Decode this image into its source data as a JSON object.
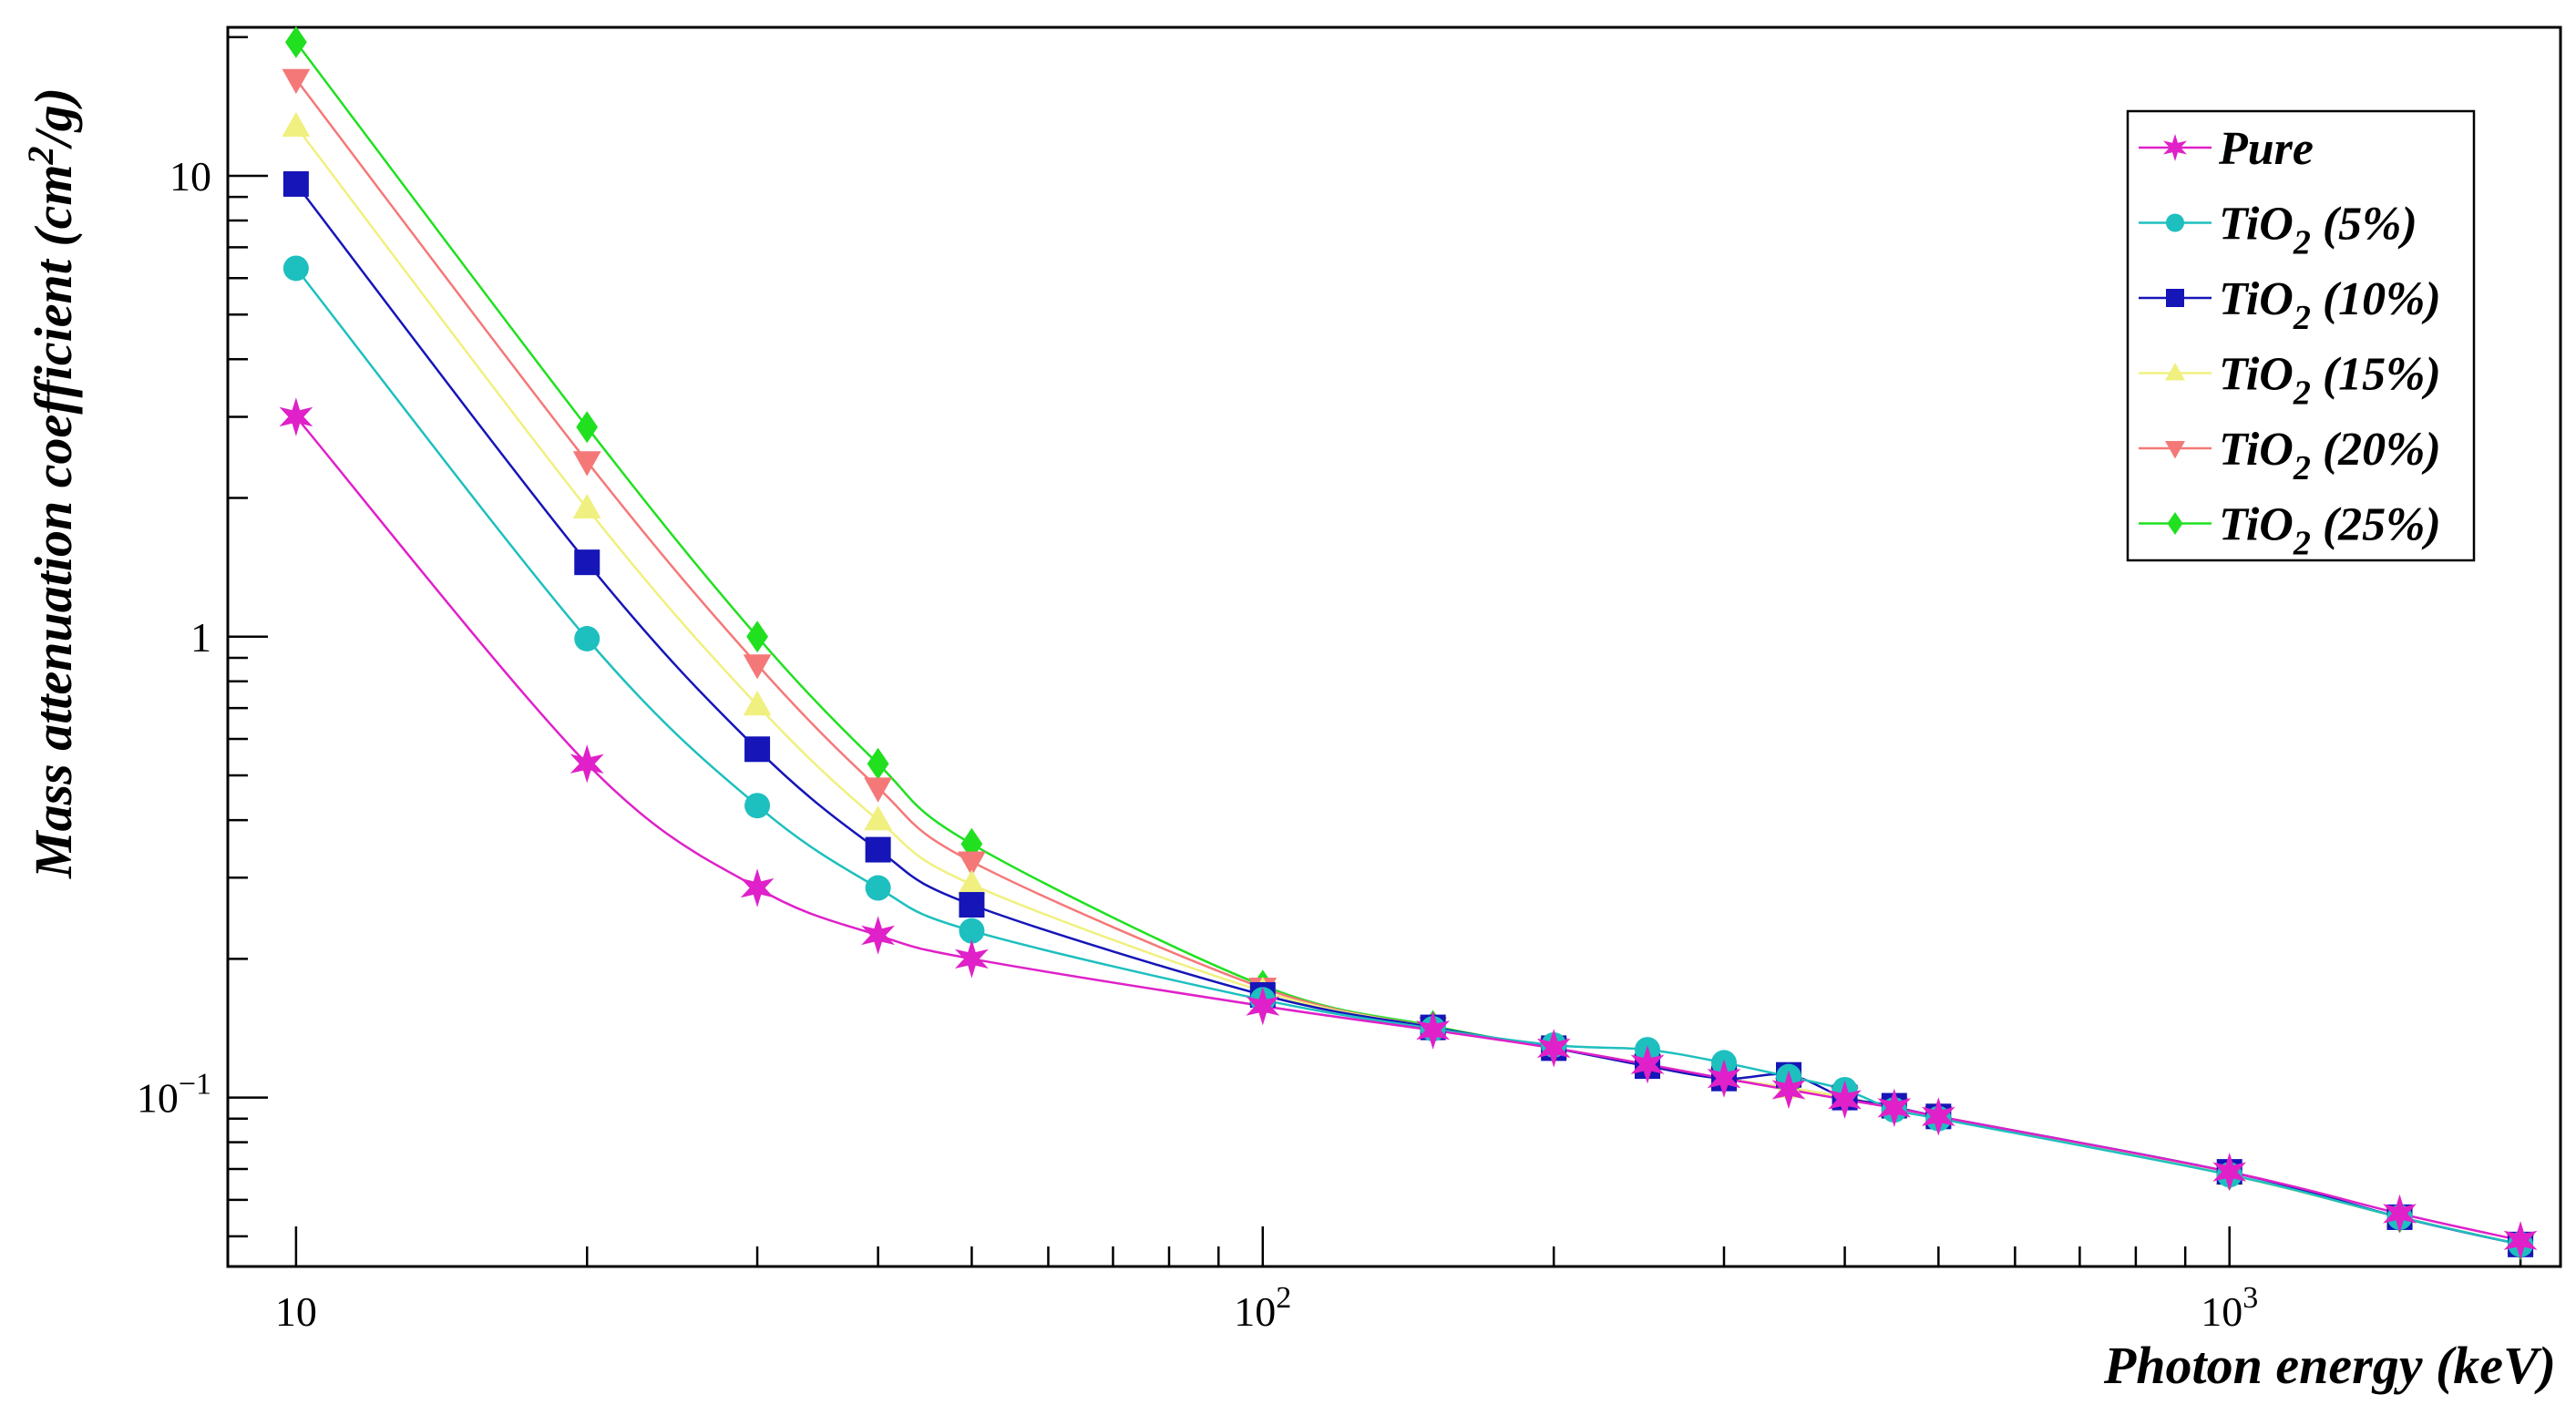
{
  "chart_data": {
    "type": "scatter",
    "xlabel": "Photon energy (keV)",
    "ylabel_parts": {
      "pre": "Mass attenuation coefficient (cm",
      "sup": "2",
      "post": "/g)"
    },
    "xscale": "log",
    "yscale": "log",
    "xlim": [
      8.5,
      2200
    ],
    "ylim": [
      0.043,
      21
    ],
    "grid": false,
    "legend_position": "top-right",
    "x_tick_labels": [
      {
        "value": 10,
        "base": "10",
        "exp": ""
      },
      {
        "value": 100,
        "base": "10",
        "exp": "2"
      },
      {
        "value": 1000,
        "base": "10",
        "exp": "3"
      }
    ],
    "y_tick_labels": [
      {
        "value": 0.1,
        "base": "10",
        "exp": "−1"
      },
      {
        "value": 1,
        "base": "1",
        "exp": ""
      },
      {
        "value": 10,
        "base": "10",
        "exp": ""
      }
    ],
    "x": [
      10,
      20,
      30,
      40,
      50,
      100,
      150,
      200,
      250,
      300,
      350,
      400,
      450,
      500,
      1000,
      1500,
      2000
    ],
    "series": [
      {
        "label": "Pure",
        "sub": "",
        "suffix": "",
        "color": "#e020c8",
        "marker": "star",
        "values": [
          3.0,
          0.53,
          0.285,
          0.225,
          0.2,
          0.158,
          0.14,
          0.128,
          0.118,
          0.11,
          0.104,
          0.099,
          0.095,
          0.091,
          0.069,
          0.056,
          0.049
        ]
      },
      {
        "label": "TiO",
        "sub": "2",
        "suffix": " (5%)",
        "color": "#1ebfbf",
        "marker": "circle",
        "values": [
          6.3,
          0.99,
          0.43,
          0.285,
          0.23,
          0.163,
          0.141,
          0.13,
          0.127,
          0.119,
          0.111,
          0.104,
          0.094,
          0.09,
          0.068,
          0.055,
          0.048
        ]
      },
      {
        "label": "TiO",
        "sub": "2",
        "suffix": " (10%)",
        "color": "#1515b8",
        "marker": "square",
        "values": [
          9.6,
          1.45,
          0.57,
          0.345,
          0.262,
          0.167,
          0.142,
          0.128,
          0.117,
          0.11,
          0.112,
          0.1,
          0.096,
          0.091,
          0.069,
          0.055,
          0.048
        ]
      },
      {
        "label": "TiO",
        "sub": "2",
        "suffix": " (15%)",
        "color": "#f0f080",
        "marker": "triangle-up",
        "values": [
          12.8,
          1.9,
          0.71,
          0.4,
          0.29,
          0.17,
          0.142,
          0.128,
          0.118,
          0.11,
          0.105,
          0.1,
          0.095,
          0.091,
          0.068,
          0.055,
          0.048
        ]
      },
      {
        "label": "TiO",
        "sub": "2",
        "suffix": " (20%)",
        "color": "#f57878",
        "marker": "triangle-down",
        "values": [
          16.2,
          2.4,
          0.87,
          0.47,
          0.325,
          0.173,
          0.142,
          0.128,
          0.118,
          0.11,
          0.105,
          0.1,
          0.095,
          0.091,
          0.068,
          0.055,
          0.048
        ]
      },
      {
        "label": "TiO",
        "sub": "2",
        "suffix": " (25%)",
        "color": "#20e020",
        "marker": "diamond",
        "values": [
          19.5,
          2.85,
          1.0,
          0.53,
          0.355,
          0.175,
          0.143,
          0.128,
          0.118,
          0.11,
          0.105,
          0.1,
          0.095,
          0.091,
          0.068,
          0.055,
          0.048
        ]
      }
    ]
  }
}
